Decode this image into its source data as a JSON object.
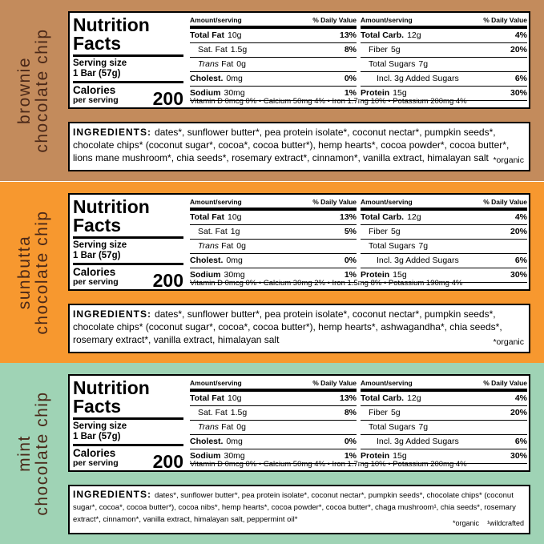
{
  "panels": [
    {
      "flavor": [
        "brownie",
        "chocolate chip"
      ],
      "color": "#c38b5c",
      "facts": {
        "title": [
          "Nutrition",
          "Facts"
        ],
        "serving_label": "Serving size",
        "serving": "1 Bar (57g)",
        "calories_label": "Calories",
        "calories_sub": "per serving",
        "calories": "200",
        "header": [
          "Amount/serving",
          "% Daily Value"
        ],
        "left": [
          {
            "label": "Total Fat",
            "amount": "10g",
            "dv": "13%",
            "bold": true
          },
          {
            "label": "Sat. Fat",
            "amount": "1.5g",
            "dv": "8%"
          },
          {
            "italic": "Trans",
            "label": "Fat",
            "amount": "0g"
          },
          {
            "label": "Cholest.",
            "amount": "0mg",
            "dv": "0%",
            "bold": true
          },
          {
            "label": "Sodium",
            "amount": "30mg",
            "dv": "1%",
            "bold": true
          }
        ],
        "right": [
          {
            "label": "Total Carb.",
            "amount": "12g",
            "dv": "4%",
            "bold": true
          },
          {
            "label": "Fiber",
            "amount": "5g",
            "dv": "20%"
          },
          {
            "label": "Total Sugars",
            "amount": "7g"
          },
          {
            "label": "Incl. 3g Added Sugars",
            "dv": "6%",
            "indent2": true
          },
          {
            "label": "Protein",
            "amount": "15g",
            "dv": "30%",
            "bold": true
          }
        ],
        "footer": "Vitamin D 0mcg 0% • Calcium 50mg 4% • Iron 1.7mg 10% • Potassium 200mg 4%"
      },
      "ingredients": {
        "label": "INGREDIENTS:",
        "text": "dates*, sunflower butter*, pea protein isolate*, coconut nectar*, pumpkin seeds*, chocolate chips* (coconut sugar*, cocoa*, cocoa butter*), hemp hearts*, cocoa powder*, cocoa butter*, lions mane mushroom*, chia seeds*, rosemary extract*, cinnamon*, vanilla extract, himalayan salt",
        "notes": [
          "*organic"
        ]
      }
    },
    {
      "flavor": [
        "sunbutta",
        "chocolate chip"
      ],
      "color": "#f7982f",
      "facts": {
        "title": [
          "Nutrition",
          "Facts"
        ],
        "serving_label": "Serving size",
        "serving": "1 Bar (57g)",
        "calories_label": "Calories",
        "calories_sub": "per serving",
        "calories": "200",
        "header": [
          "Amount/serving",
          "% Daily Value"
        ],
        "left": [
          {
            "label": "Total Fat",
            "amount": "10g",
            "dv": "13%",
            "bold": true
          },
          {
            "label": "Sat. Fat",
            "amount": "1g",
            "dv": "5%"
          },
          {
            "italic": "Trans",
            "label": "Fat",
            "amount": "0g"
          },
          {
            "label": "Cholest.",
            "amount": "0mg",
            "dv": "0%",
            "bold": true
          },
          {
            "label": "Sodium",
            "amount": "30mg",
            "dv": "1%",
            "bold": true
          }
        ],
        "right": [
          {
            "label": "Total Carb.",
            "amount": "12g",
            "dv": "4%",
            "bold": true
          },
          {
            "label": "Fiber",
            "amount": "5g",
            "dv": "20%"
          },
          {
            "label": "Total Sugars",
            "amount": "7g"
          },
          {
            "label": "Incl. 3g Added Sugars",
            "dv": "6%",
            "indent2": true
          },
          {
            "label": "Protein",
            "amount": "15g",
            "dv": "30%",
            "bold": true
          }
        ],
        "footer": "Vitamin D 0mcg 0% • Calcium 30mg 2% • Iron 1.5mg 8% • Potassium 190mg 4%"
      },
      "ingredients": {
        "label": "INGREDIENTS:",
        "text": "dates*, sunflower butter*, pea protein isolate*, coconut nectar*, pumpkin seeds*, chocolate chips* (coconut sugar*, cocoa*, cocoa butter*), hemp hearts*, ashwagandha*, chia seeds*, rosemary extract*, vanilla extract, himalayan salt",
        "notes": [
          "*organic"
        ]
      }
    },
    {
      "flavor": [
        "mint",
        "chocolate chip"
      ],
      "color": "#9fd3b5",
      "facts": {
        "title": [
          "Nutrition",
          "Facts"
        ],
        "serving_label": "Serving size",
        "serving": "1 Bar (57g)",
        "calories_label": "Calories",
        "calories_sub": "per serving",
        "calories": "200",
        "header": [
          "Amount/serving",
          "% Daily Value"
        ],
        "left": [
          {
            "label": "Total Fat",
            "amount": "10g",
            "dv": "13%",
            "bold": true
          },
          {
            "label": "Sat. Fat",
            "amount": "1.5g",
            "dv": "8%"
          },
          {
            "italic": "Trans",
            "label": "Fat",
            "amount": "0g"
          },
          {
            "label": "Cholest.",
            "amount": "0mg",
            "dv": "0%",
            "bold": true
          },
          {
            "label": "Sodium",
            "amount": "30mg",
            "dv": "1%",
            "bold": true
          }
        ],
        "right": [
          {
            "label": "Total Carb.",
            "amount": "12g",
            "dv": "4%",
            "bold": true
          },
          {
            "label": "Fiber",
            "amount": "5g",
            "dv": "20%"
          },
          {
            "label": "Total Sugars",
            "amount": "7g"
          },
          {
            "label": "Incl. 3g Added Sugars",
            "dv": "6%",
            "indent2": true
          },
          {
            "label": "Protein",
            "amount": "15g",
            "dv": "30%",
            "bold": true
          }
        ],
        "footer": "Vitamin D 0mcg 0% • Calcium 50mg 4% • Iron 1.7mg 10% • Potassium 200mg 4%"
      },
      "ingredients": {
        "label": "INGREDIENTS:",
        "text": "dates*, sunflower butter*, pea protein isolate*, coconut nectar*, pumpkin seeds*, chocolate chips* (coconut sugar*, cocoa*, cocoa butter*), cocoa nibs*, hemp hearts*, cocoa powder*, cocoa butter*, chaga mushroom¹, chia seeds*, rosemary extract*, cinnamon*, vanilla extract, himalayan salt, peppermint oil*",
        "notes": [
          "*organic",
          "¹wildcrafted"
        ]
      }
    }
  ]
}
